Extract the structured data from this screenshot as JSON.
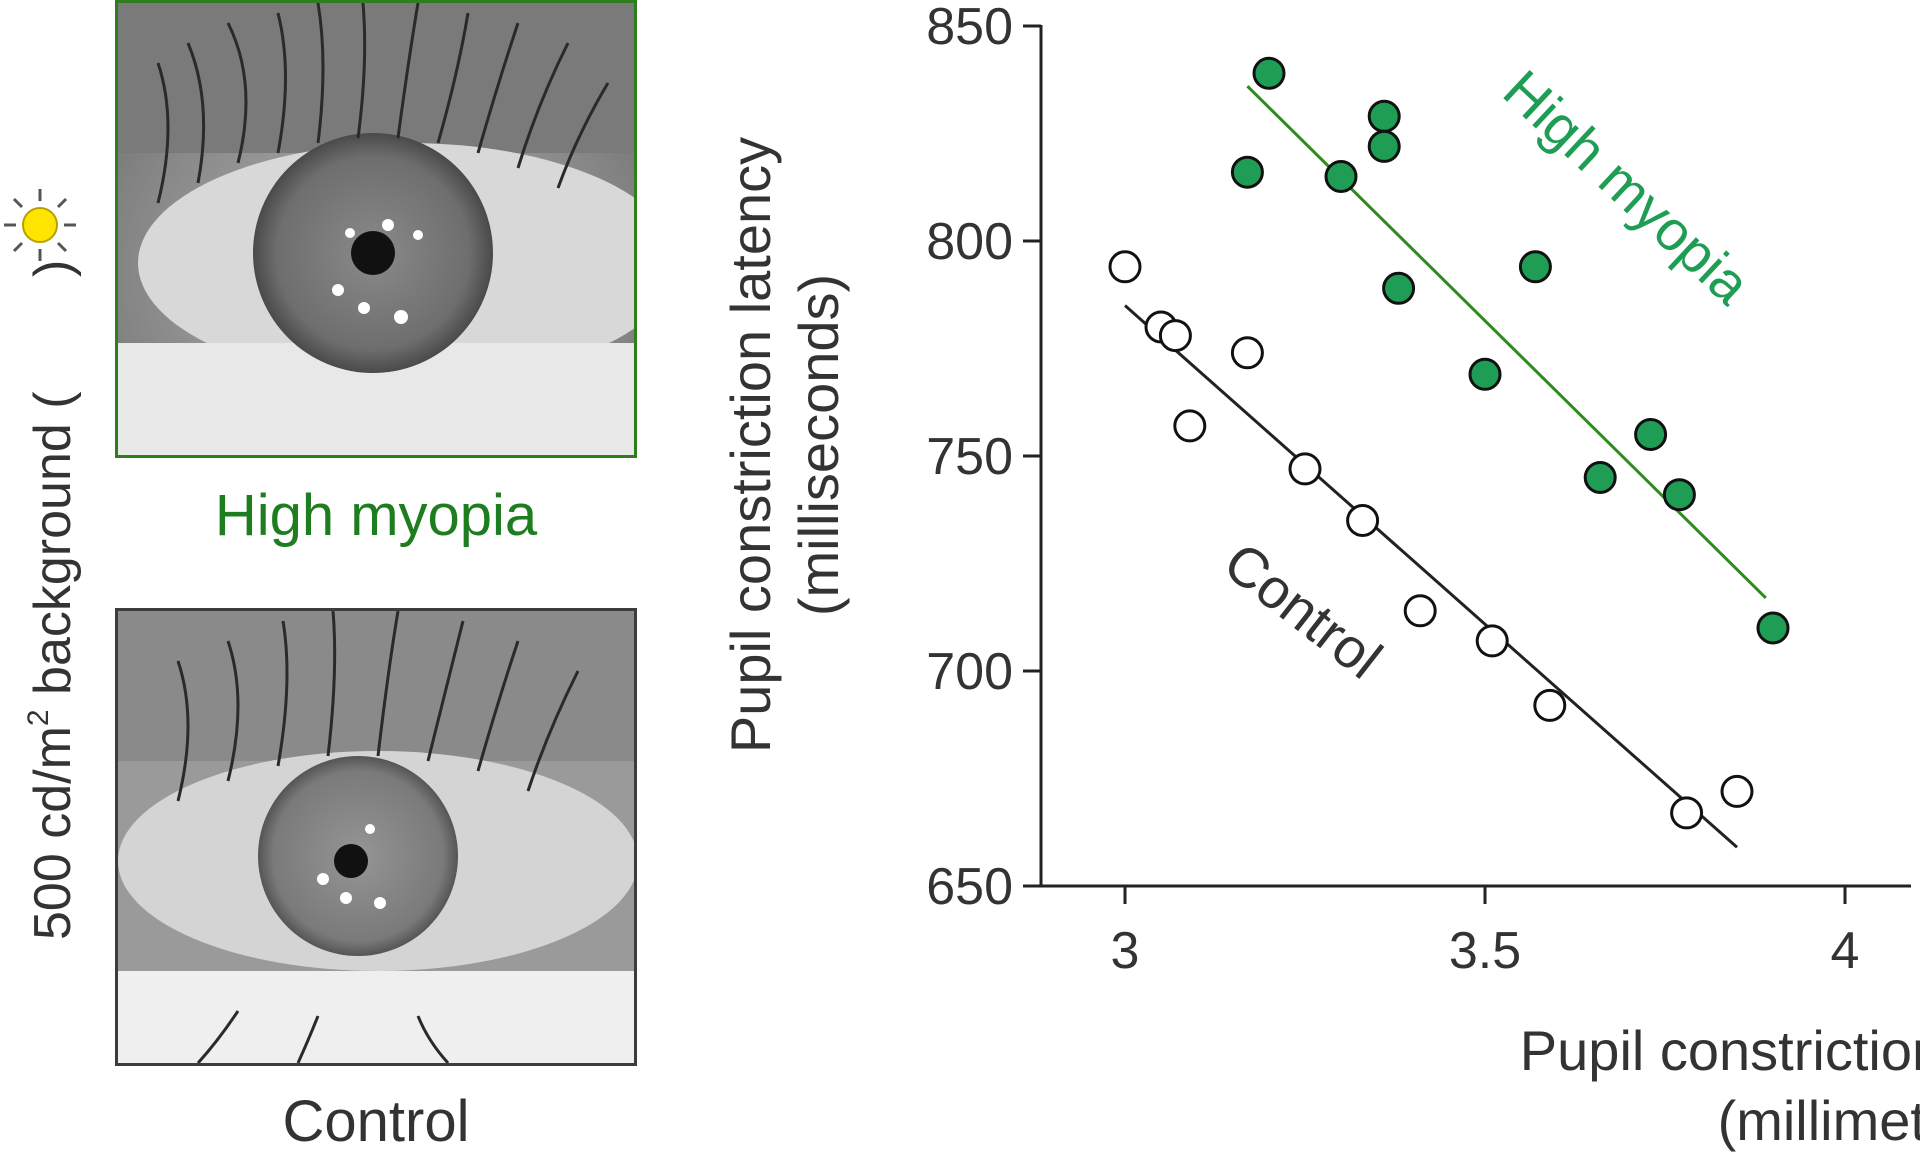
{
  "photos": {
    "high_myopia_label": "High myopia",
    "control_label": "Control",
    "side_caption_prefix": "500 cd/m",
    "side_caption_sup": "2",
    "side_caption_suffix": " background (",
    "side_caption_close": " )"
  },
  "colors": {
    "myopia": "#1f9d55",
    "myopia_line": "#2e8b1e",
    "myopia_text": "#1e7d1e",
    "control": "#222222",
    "sun": "#ffe400"
  },
  "chart_data": {
    "type": "scatter",
    "xlabel_line1": "Pupil constriction magnitude",
    "xlabel_line2": "(millimeters)",
    "ylabel_line1": "Pupil constriction latency",
    "ylabel_line2": "(milliseconds)",
    "xlim": [
      2.9,
      4.1
    ],
    "ylim": [
      650,
      850
    ],
    "x_ticks": [
      3,
      3.5,
      4
    ],
    "x_tick_labels": [
      "3",
      "3.5",
      "4"
    ],
    "y_ticks": [
      650,
      700,
      750,
      800,
      850
    ],
    "y_tick_labels": [
      "650",
      "700",
      "750",
      "800",
      "850"
    ],
    "series": [
      {
        "name": "High myopia",
        "marker": "filled",
        "points": [
          [
            3.2,
            839
          ],
          [
            3.17,
            816
          ],
          [
            3.3,
            815
          ],
          [
            3.36,
            829
          ],
          [
            3.36,
            822
          ],
          [
            3.38,
            789
          ],
          [
            3.57,
            794
          ],
          [
            3.5,
            769
          ],
          [
            3.66,
            745
          ],
          [
            3.73,
            755
          ],
          [
            3.77,
            741
          ],
          [
            3.9,
            710
          ]
        ],
        "fit": [
          [
            3.17,
            836
          ],
          [
            3.89,
            717
          ]
        ]
      },
      {
        "name": "Control",
        "marker": "open",
        "points": [
          [
            3.0,
            794
          ],
          [
            3.05,
            780
          ],
          [
            3.07,
            778
          ],
          [
            3.09,
            757
          ],
          [
            3.17,
            774
          ],
          [
            3.25,
            747
          ],
          [
            3.33,
            735
          ],
          [
            3.41,
            714
          ],
          [
            3.51,
            707
          ],
          [
            3.59,
            692
          ],
          [
            3.78,
            667
          ],
          [
            3.85,
            672
          ]
        ],
        "fit": [
          [
            3.0,
            785
          ],
          [
            3.85,
            659
          ]
        ]
      }
    ]
  }
}
